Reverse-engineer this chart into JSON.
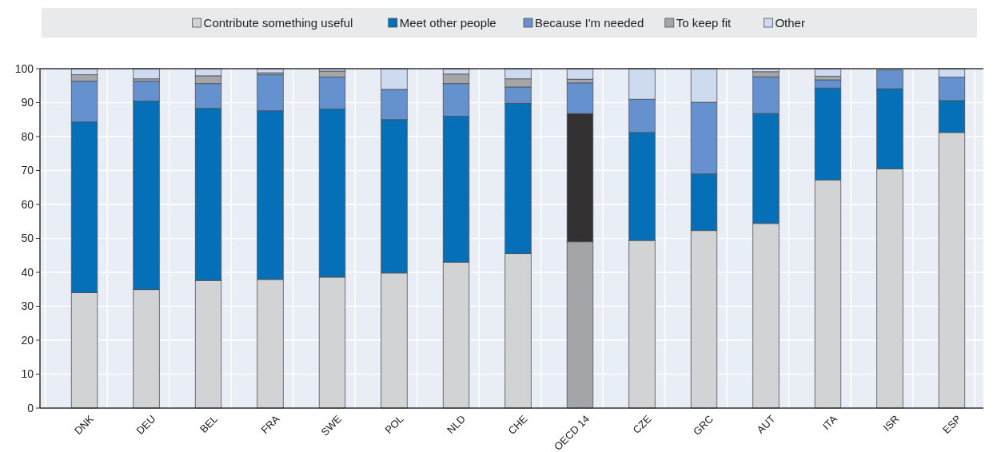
{
  "chart_data": {
    "type": "bar",
    "stacked": true,
    "legend": "top",
    "grid": true,
    "categories": [
      "DNK",
      "DEU",
      "BEL",
      "FRA",
      "SWE",
      "POL",
      "NLD",
      "CHE",
      "OECD 14",
      "CZE",
      "GRC",
      "AUT",
      "ITA",
      "ISR",
      "ESP"
    ],
    "ylim": [
      0,
      100
    ],
    "yticks": [
      0,
      10,
      20,
      30,
      40,
      50,
      60,
      70,
      80,
      90,
      100
    ],
    "series": [
      {
        "name": "Contribute something useful",
        "color": "#d2d3d5",
        "colors": [
          "#d2d3d5",
          "#d2d3d5",
          "#d2d3d5",
          "#d2d3d5",
          "#d2d3d5",
          "#d2d3d5",
          "#d2d3d5",
          "#d2d3d5",
          "#a4a5a8",
          "#d2d3d5",
          "#d2d3d5",
          "#d2d3d5",
          "#d2d3d5",
          "#d2d3d5",
          "#d2d3d5"
        ],
        "values": [
          34,
          34.9,
          37.6,
          37.9,
          38.6,
          39.8,
          43,
          45.5,
          49,
          49.4,
          52.3,
          54.4,
          67.2,
          70.5,
          81.2
        ]
      },
      {
        "name": "Meet other people",
        "color": "#0570b8",
        "colors": [
          "#0570b8",
          "#0570b8",
          "#0570b8",
          "#0570b8",
          "#0570b8",
          "#0570b8",
          "#0570b8",
          "#0570b8",
          "#333132",
          "#0570b8",
          "#0570b8",
          "#0570b8",
          "#0570b8",
          "#0570b8",
          "#0570b8"
        ],
        "values": [
          50.3,
          55.6,
          50.7,
          49.7,
          49.5,
          45.2,
          43,
          44.3,
          37.8,
          31.8,
          16.7,
          32.4,
          27.1,
          23.6,
          9.4
        ]
      },
      {
        "name": "Because I'm needed",
        "color": "#6592ce",
        "values": [
          12,
          5.8,
          7.3,
          10.6,
          9.4,
          8.9,
          9.6,
          4.8,
          9,
          9.8,
          21.1,
          10.8,
          2.4,
          5.5,
          6.9
        ]
      },
      {
        "name": "To keep fit",
        "color": "#a5a6a8",
        "values": [
          1.9,
          0.7,
          2.3,
          0.6,
          1.8,
          0,
          2.8,
          2.4,
          1.1,
          0,
          0,
          1.5,
          1.1,
          0,
          0
        ]
      },
      {
        "name": "Other",
        "color": "#cddaf0",
        "values": [
          1.8,
          3,
          2.1,
          1.2,
          0.7,
          6.1,
          1.6,
          3,
          3.1,
          9,
          9.9,
          0.9,
          2.2,
          null,
          2.5
        ]
      }
    ]
  }
}
